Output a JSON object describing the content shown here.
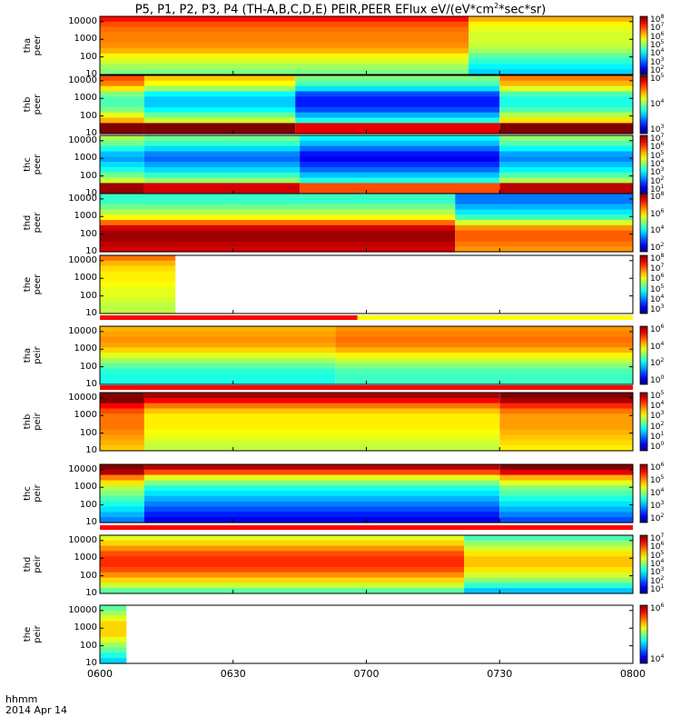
{
  "title": {
    "text": "P5, P1, P2, P3, P4 (TH-A,B,C,D,E) PEIR,PEER EFlux eV/(eV*cm",
    "sup": "2",
    "tail": "*sec*sr)"
  },
  "xaxis": {
    "unit": "hhmm",
    "date": "2014 Apr 14",
    "ticks": [
      "0600",
      "0630",
      "0700",
      "0730",
      "0800"
    ]
  },
  "colors": {
    "bg": "#ffffff",
    "flag_red": "#ff0000",
    "flag_yellow": "#ffff00",
    "flag_black": "#000000"
  },
  "chart_data": [
    {
      "type": "heatmap",
      "name": "tha peer",
      "ylabel": [
        "tha",
        "peer"
      ],
      "yticks": [
        "10000",
        "1000",
        "100",
        "10"
      ],
      "log_y": true,
      "ylim": [
        10,
        20000
      ],
      "xlim": [
        "0600",
        "0800"
      ],
      "cbar": {
        "exps": [
          "8",
          "7",
          "6",
          "5",
          "4",
          "3",
          "2"
        ],
        "range": [
          2,
          8
        ]
      },
      "profile": [
        7.2,
        6.8,
        6.6,
        6.5,
        6.5,
        6.4,
        6.2,
        5.8,
        5.5,
        5.2,
        5.0
      ],
      "segments": [
        {
          "start": "0600",
          "end": "0723",
          "shift": 0
        },
        {
          "start": "0723",
          "end": "0800",
          "shift": -1
        }
      ]
    },
    {
      "type": "heatmap",
      "name": "thb peer",
      "ylabel": [
        "thb",
        "peer"
      ],
      "yticks": [
        "10000",
        "1000",
        "100",
        "10"
      ],
      "log_y": true,
      "ylim": [
        10,
        20000
      ],
      "xlim": [
        "0600",
        "0800"
      ],
      "cbar": {
        "exps": [
          "5",
          "4",
          "3"
        ],
        "range": [
          2,
          6
        ]
      },
      "profile": [
        4.4,
        4.2,
        3.8,
        3.2,
        3.0,
        3.0,
        3.2,
        3.6,
        4.0,
        6.0,
        6.0
      ],
      "segments": [
        {
          "start": "0600",
          "end": "0610",
          "shift": 0.8
        },
        {
          "start": "0610",
          "end": "0644",
          "shift": 0.3
        },
        {
          "start": "0644",
          "end": "0730",
          "shift": -0.4
        },
        {
          "start": "0730",
          "end": "0800",
          "shift": 0.6
        }
      ]
    },
    {
      "type": "heatmap",
      "name": "thc peer",
      "ylabel": [
        "thc",
        "peer"
      ],
      "yticks": [
        "10000",
        "1000",
        "100",
        "10"
      ],
      "log_y": true,
      "ylim": [
        10,
        20000
      ],
      "xlim": [
        "0600",
        "0800"
      ],
      "cbar": {
        "exps": [
          "7",
          "6",
          "5",
          "4",
          "3",
          "2",
          "1"
        ],
        "range": [
          1,
          8
        ]
      },
      "profile": [
        4.0,
        3.6,
        3.0,
        2.4,
        2.2,
        2.6,
        3.0,
        3.6,
        4.2,
        7.0,
        7.0
      ],
      "segments": [
        {
          "start": "0600",
          "end": "0610",
          "shift": 0.8
        },
        {
          "start": "0610",
          "end": "0645",
          "shift": 0.4
        },
        {
          "start": "0645",
          "end": "0730",
          "shift": -0.4
        },
        {
          "start": "0730",
          "end": "0800",
          "shift": 0.6
        }
      ]
    },
    {
      "type": "heatmap",
      "name": "thd peer",
      "ylabel": [
        "thd",
        "peer"
      ],
      "yticks": [
        "10000",
        "1000",
        "100",
        "10"
      ],
      "log_y": true,
      "ylim": [
        10,
        20000
      ],
      "xlim": [
        "0600",
        "0800"
      ],
      "cbar": {
        "exps": [
          "8",
          "6",
          "4",
          "2"
        ],
        "range": [
          1,
          8
        ]
      },
      "profile": [
        4.0,
        4.0,
        4.4,
        4.8,
        5.4,
        6.4,
        7.4,
        7.8,
        7.8,
        7.6,
        7.4
      ],
      "segments": [
        {
          "start": "0600",
          "end": "0720",
          "shift": 0
        },
        {
          "start": "0720",
          "end": "0800",
          "shift": -1.3
        }
      ]
    },
    {
      "type": "heatmap",
      "name": "the peer",
      "ylabel": [
        "the",
        "peer"
      ],
      "yticks": [
        "10000",
        "1000",
        "100",
        "10"
      ],
      "log_y": true,
      "ylim": [
        10,
        20000
      ],
      "xlim": [
        "0600",
        "0800"
      ],
      "cbar": {
        "exps": [
          "8",
          "7",
          "6",
          "5",
          "4",
          "3"
        ],
        "range": [
          3,
          8
        ]
      },
      "profile": [
        6.8,
        6.5,
        6.3,
        6.2,
        6.2,
        6.1,
        6.0,
        6.0,
        5.9,
        5.8,
        5.8
      ],
      "segments": [
        {
          "start": "0600",
          "end": "0617",
          "shift": 0
        }
      ]
    },
    {
      "type": "heatmap",
      "name": "tha peir",
      "ylabel": [
        "tha",
        "peir"
      ],
      "yticks": [
        "10000",
        "1000",
        "100",
        "10"
      ],
      "log_y": true,
      "ylim": [
        10,
        20000
      ],
      "xlim": [
        "0600",
        "0800"
      ],
      "cbar": {
        "exps": [
          "6",
          "4",
          "2",
          "0"
        ],
        "range": [
          0,
          6
        ]
      },
      "profile": [
        4.2,
        4.3,
        4.4,
        4.3,
        4.0,
        3.6,
        3.2,
        2.8,
        2.5,
        2.4,
        2.4
      ],
      "segments": [
        {
          "start": "0600",
          "end": "0653",
          "shift": 0
        },
        {
          "start": "0653",
          "end": "0800",
          "shift": 0.2
        }
      ]
    },
    {
      "type": "heatmap",
      "name": "thb peir",
      "ylabel": [
        "thb",
        "peir"
      ],
      "yticks": [
        "10000",
        "1000",
        "100",
        "10"
      ],
      "log_y": true,
      "ylim": [
        10,
        20000
      ],
      "xlim": [
        "0600",
        "0800"
      ],
      "cbar": {
        "exps": [
          "5",
          "4",
          "3",
          "2",
          "1",
          "0"
        ],
        "range": [
          0,
          5
        ]
      },
      "profile": [
        4.8,
        4.4,
        3.8,
        3.4,
        3.2,
        3.2,
        3.2,
        3.1,
        3.0,
        2.9,
        2.8
      ],
      "segments": [
        {
          "start": "0600",
          "end": "0610",
          "shift": 0.6
        },
        {
          "start": "0610",
          "end": "0730",
          "shift": 0
        },
        {
          "start": "0730",
          "end": "0800",
          "shift": 0.4
        }
      ]
    },
    {
      "type": "heatmap",
      "name": "thc peir",
      "ylabel": [
        "thc",
        "peir"
      ],
      "yticks": [
        "10000",
        "1000",
        "100",
        "10"
      ],
      "log_y": true,
      "ylim": [
        10,
        20000
      ],
      "xlim": [
        "0600",
        "0800"
      ],
      "cbar": {
        "exps": [
          "6",
          "5",
          "4",
          "3",
          "2"
        ],
        "range": [
          2,
          6
        ]
      },
      "profile": [
        5.8,
        5.2,
        4.4,
        4.0,
        3.6,
        3.4,
        3.2,
        3.0,
        2.8,
        2.6,
        2.4
      ],
      "segments": [
        {
          "start": "0600",
          "end": "0610",
          "shift": 0.6
        },
        {
          "start": "0610",
          "end": "0730",
          "shift": 0
        },
        {
          "start": "0730",
          "end": "0800",
          "shift": 0.4
        }
      ]
    },
    {
      "type": "heatmap",
      "name": "thd peir",
      "ylabel": [
        "thd",
        "peir"
      ],
      "yticks": [
        "10000",
        "1000",
        "100",
        "10"
      ],
      "log_y": true,
      "ylim": [
        10,
        20000
      ],
      "xlim": [
        "0600",
        "0800"
      ],
      "cbar": {
        "exps": [
          "7",
          "6",
          "5",
          "4",
          "3",
          "2",
          "1"
        ],
        "range": [
          1,
          7
        ]
      },
      "profile": [
        4.6,
        5.0,
        5.4,
        5.8,
        6.0,
        6.0,
        5.8,
        5.4,
        5.0,
        4.4,
        3.8
      ],
      "segments": [
        {
          "start": "0600",
          "end": "0722",
          "shift": 0
        },
        {
          "start": "0722",
          "end": "0800",
          "shift": -0.9
        }
      ]
    },
    {
      "type": "heatmap",
      "name": "the peir",
      "ylabel": [
        "the",
        "peir"
      ],
      "yticks": [
        "10000",
        "1000",
        "100",
        "10"
      ],
      "log_y": true,
      "ylim": [
        10,
        20000
      ],
      "xlim": [
        "0600",
        "0800"
      ],
      "cbar": {
        "exps": [
          "6",
          "4"
        ],
        "range": [
          3,
          6
        ]
      },
      "profile": [
        4.4,
        4.6,
        4.8,
        5.0,
        5.0,
        5.0,
        4.8,
        4.6,
        4.4,
        4.2,
        4.0
      ],
      "segments": [
        {
          "start": "0600",
          "end": "0606",
          "shift": 0
        }
      ]
    }
  ],
  "flags": [
    {
      "after_panel": 4,
      "bars": [
        {
          "start": "0600",
          "end": "0658",
          "color": "red"
        },
        {
          "start": "0658",
          "end": "0800",
          "color": "yellow"
        }
      ]
    },
    {
      "after_panel": 5,
      "bars": [
        {
          "start": "0600",
          "end": "0800",
          "color": "red"
        }
      ]
    },
    {
      "after_panel": 7,
      "bars": [
        {
          "start": "0600",
          "end": "0800",
          "color": "red"
        }
      ]
    }
  ]
}
